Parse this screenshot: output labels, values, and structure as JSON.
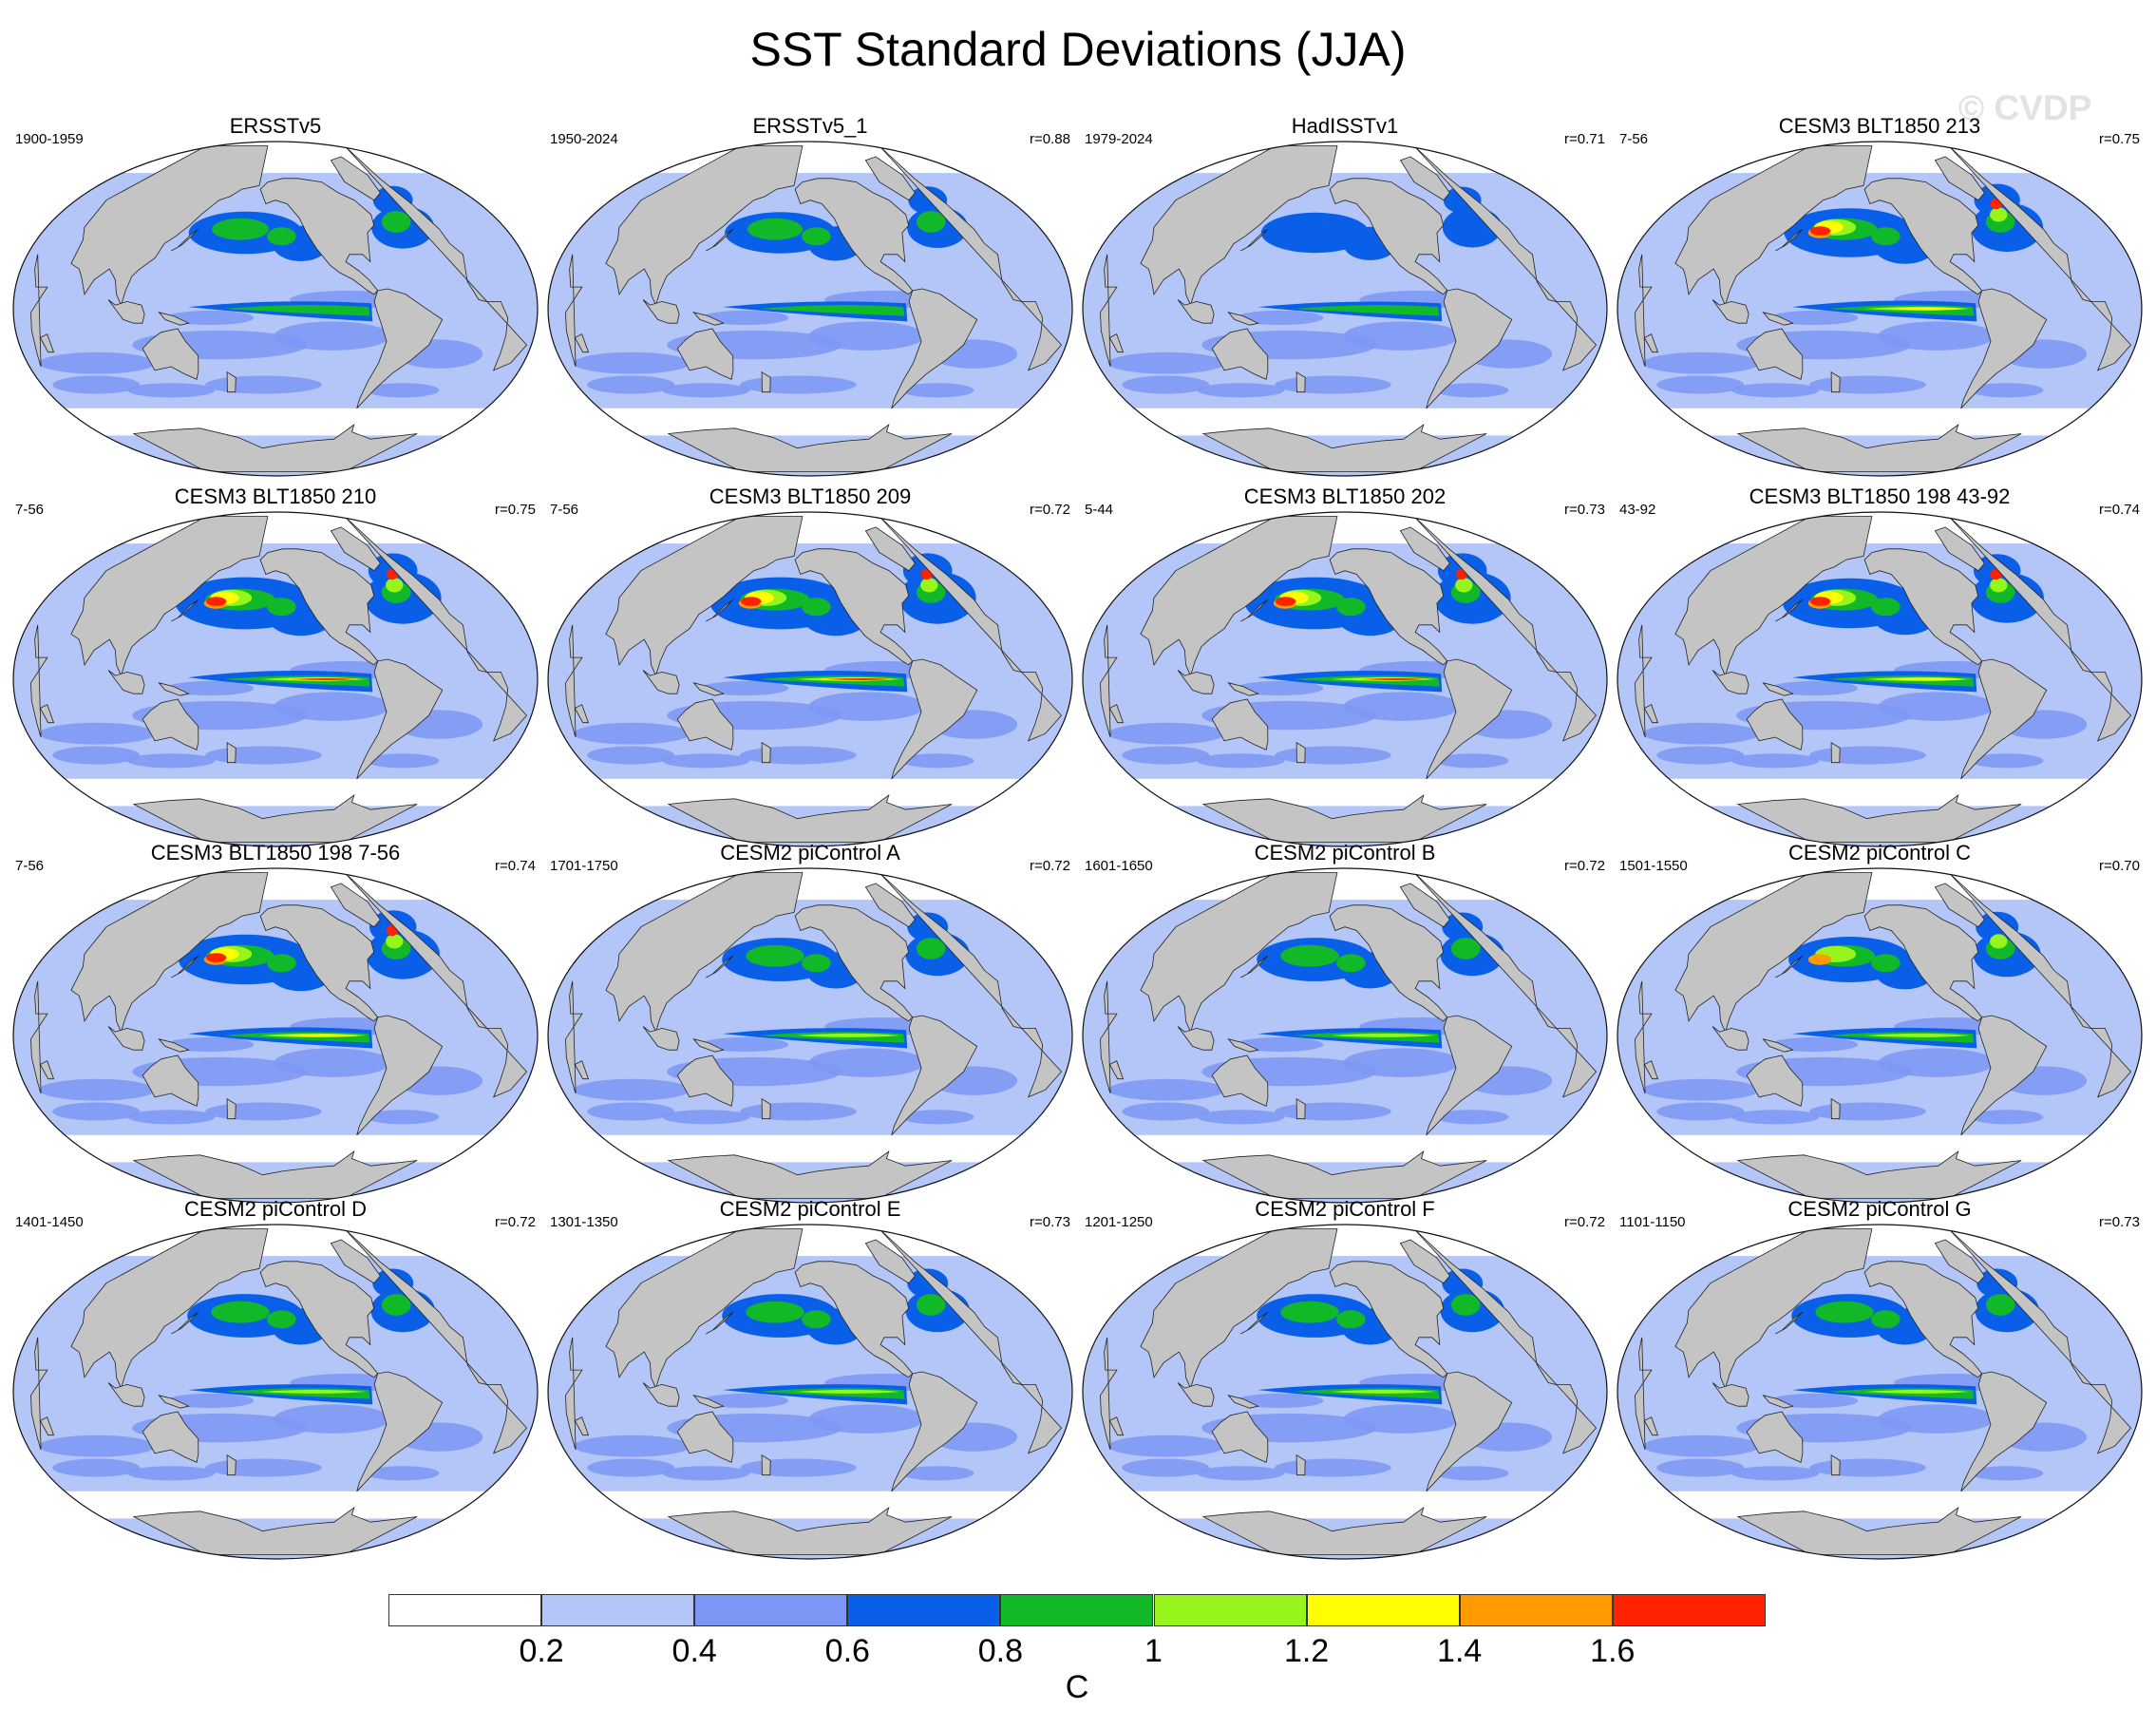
{
  "title": "SST Standard Deviations (JJA)",
  "watermark": "© CVDP",
  "colors": {
    "land": "#c4c4c4",
    "ocean_base": "#b3c6f7",
    "levels": [
      "#ffffff",
      "#b3c6f7",
      "#7b96f4",
      "#0a5fe8",
      "#11b928",
      "#97f51c",
      "#ffff00",
      "#ff9a00",
      "#ff2200"
    ]
  },
  "panels": [
    {
      "title": "ERSSTv5",
      "left": "1900-1959",
      "right": "",
      "intensity": 0.55
    },
    {
      "title": "ERSSTv5_1",
      "left": "1950-2024",
      "right": "r=0.88",
      "intensity": 0.5
    },
    {
      "title": "HadISSTv1",
      "left": "1979-2024",
      "right": "r=0.71",
      "intensity": 0.45
    },
    {
      "title": "CESM3 BLT1850 213",
      "left": "7-56",
      "right": "r=0.75",
      "intensity": 0.85
    },
    {
      "title": "CESM3 BLT1850 210",
      "left": "7-56",
      "right": "r=0.75",
      "intensity": 1.0
    },
    {
      "title": "CESM3 BLT1850 209",
      "left": "7-56",
      "right": "r=0.72",
      "intensity": 1.0
    },
    {
      "title": "CESM3 BLT1850 202",
      "left": "5-44",
      "right": "r=0.73",
      "intensity": 1.0
    },
    {
      "title": "CESM3 BLT1850 198 43-92",
      "left": "43-92",
      "right": "r=0.74",
      "intensity": 0.9
    },
    {
      "title": "CESM3 BLT1850 198 7-56",
      "left": "7-56",
      "right": "r=0.74",
      "intensity": 0.9
    },
    {
      "title": "CESM2 piControl A",
      "left": "1701-1750",
      "right": "r=0.72",
      "intensity": 0.6
    },
    {
      "title": "CESM2 piControl B",
      "left": "1601-1650",
      "right": "r=0.72",
      "intensity": 0.6
    },
    {
      "title": "CESM2 piControl C",
      "left": "1501-1550",
      "right": "r=0.70",
      "intensity": 0.7
    },
    {
      "title": "CESM2 piControl D",
      "left": "1401-1450",
      "right": "r=0.72",
      "intensity": 0.6
    },
    {
      "title": "CESM2 piControl E",
      "left": "1301-1350",
      "right": "r=0.73",
      "intensity": 0.6
    },
    {
      "title": "CESM2 piControl F",
      "left": "1201-1250",
      "right": "r=0.72",
      "intensity": 0.6
    },
    {
      "title": "CESM2 piControl G",
      "left": "1101-1150",
      "right": "r=0.73",
      "intensity": 0.6
    }
  ],
  "colorbar": {
    "labels": [
      "0.2",
      "0.4",
      "0.6",
      "0.8",
      "1",
      "1.2",
      "1.4",
      "1.6"
    ],
    "unit": "C"
  }
}
